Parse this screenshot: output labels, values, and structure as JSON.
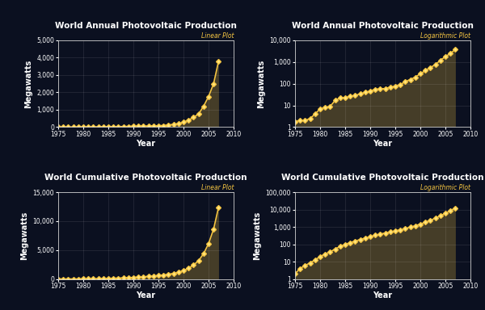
{
  "chart_data": [
    {
      "type": "line",
      "title": "World Annual Photovoltaic Production",
      "subtitle": "Linear Plot",
      "x_label": "Year",
      "y_label": "Megawatts",
      "x": [
        1975,
        1976,
        1977,
        1978,
        1979,
        1980,
        1981,
        1982,
        1983,
        1984,
        1985,
        1986,
        1987,
        1988,
        1989,
        1990,
        1991,
        1992,
        1993,
        1994,
        1995,
        1996,
        1997,
        1998,
        1999,
        2000,
        2001,
        2002,
        2003,
        2004,
        2005,
        2006,
        2007
      ],
      "values": [
        1.8,
        2,
        2,
        2.5,
        4,
        7,
        8,
        9,
        17,
        22,
        23,
        26,
        29,
        34,
        40,
        46,
        55,
        58,
        60,
        69,
        78,
        89,
        126,
        155,
        201,
        288,
        401,
        560,
        750,
        1200,
        1760,
        2500,
        3800
      ],
      "color": "#f5c542",
      "marker": "diamond",
      "line_style": "solid",
      "grid": true,
      "xlim": [
        1975,
        2010
      ],
      "xticks": [
        1975,
        1980,
        1985,
        1990,
        1995,
        2000,
        2005,
        2010
      ],
      "ylim": [
        0,
        5000
      ],
      "yticks": [
        0,
        {
          "value": 1000,
          "label": "1,000"
        },
        {
          "value": 2000,
          "label": "2,000"
        },
        {
          "value": 3000,
          "label": "3,000"
        },
        {
          "value": 4000,
          "label": "4,000"
        },
        {
          "value": 5000,
          "label": "5,000"
        }
      ]
    },
    {
      "type": "line",
      "title": "World Annual Photovoltaic Production",
      "subtitle": "Logarithmic Plot",
      "x_label": "Year",
      "y_label": "Megawatts",
      "log": "y",
      "x": [
        1975,
        1976,
        1977,
        1978,
        1979,
        1980,
        1981,
        1982,
        1983,
        1984,
        1985,
        1986,
        1987,
        1988,
        1989,
        1990,
        1991,
        1992,
        1993,
        1994,
        1995,
        1996,
        1997,
        1998,
        1999,
        2000,
        2001,
        2002,
        2003,
        2004,
        2005,
        2006,
        2007
      ],
      "values": [
        1.8,
        2,
        2,
        2.5,
        4,
        7,
        8,
        9,
        17,
        22,
        23,
        26,
        29,
        34,
        40,
        46,
        55,
        58,
        60,
        69,
        78,
        89,
        126,
        155,
        201,
        288,
        401,
        560,
        750,
        1200,
        1760,
        2500,
        3800
      ],
      "color": "#f5c542",
      "marker": "diamond",
      "line_style": "solid",
      "grid": true,
      "xlim": [
        1975,
        2010
      ],
      "xticks": [
        1975,
        1980,
        1985,
        1990,
        1995,
        2000,
        2005,
        2010
      ],
      "ylim": [
        1,
        10000
      ],
      "yticks": [
        1,
        10,
        100,
        {
          "value": 1000,
          "label": "1,000"
        },
        {
          "value": 10000,
          "label": "10,000"
        }
      ]
    },
    {
      "type": "line",
      "title": "World Cumulative Photovoltaic Production",
      "subtitle": "Linear Plot",
      "x_label": "Year",
      "y_label": "Megawatts",
      "x": [
        1975,
        1976,
        1977,
        1978,
        1979,
        1980,
        1981,
        1982,
        1983,
        1984,
        1985,
        1986,
        1987,
        1988,
        1989,
        1990,
        1991,
        1992,
        1993,
        1994,
        1995,
        1996,
        1997,
        1998,
        1999,
        2000,
        2001,
        2002,
        2003,
        2004,
        2005,
        2006,
        2007
      ],
      "values": [
        2,
        4,
        6,
        8.5,
        12.5,
        19.5,
        27.5,
        36.5,
        53,
        75,
        98,
        124,
        153,
        187,
        227,
        273,
        328,
        386,
        446,
        515,
        593,
        682,
        808,
        963,
        1164,
        1452,
        1853,
        2413,
        3163,
        4363,
        6123,
        8623,
        12423
      ],
      "color": "#f5c542",
      "marker": "diamond",
      "line_style": "solid",
      "grid": true,
      "xlim": [
        1975,
        2010
      ],
      "xticks": [
        1975,
        1980,
        1985,
        1990,
        1995,
        2000,
        2005,
        2010
      ],
      "ylim": [
        0,
        15000
      ],
      "yticks": [
        0,
        {
          "value": 5000,
          "label": "5,000"
        },
        {
          "value": 10000,
          "label": "10,000"
        },
        {
          "value": 15000,
          "label": "15,000"
        }
      ]
    },
    {
      "type": "line",
      "title": "World Cumulative Photovoltaic Production",
      "subtitle": "Logarithmic Plot",
      "x_label": "Year",
      "y_label": "Megawatts",
      "log": "y",
      "x": [
        1975,
        1976,
        1977,
        1978,
        1979,
        1980,
        1981,
        1982,
        1983,
        1984,
        1985,
        1986,
        1987,
        1988,
        1989,
        1990,
        1991,
        1992,
        1993,
        1994,
        1995,
        1996,
        1997,
        1998,
        1999,
        2000,
        2001,
        2002,
        2003,
        2004,
        2005,
        2006,
        2007
      ],
      "values": [
        2,
        4,
        6,
        8.5,
        12.5,
        19.5,
        27.5,
        36.5,
        53,
        75,
        98,
        124,
        153,
        187,
        227,
        273,
        328,
        386,
        446,
        515,
        593,
        682,
        808,
        963,
        1164,
        1452,
        1853,
        2413,
        3163,
        4363,
        6123,
        8623,
        12423
      ],
      "color": "#f5c542",
      "marker": "diamond",
      "line_style": "solid",
      "grid": true,
      "xlim": [
        1975,
        2010
      ],
      "xticks": [
        1975,
        1980,
        1985,
        1990,
        1995,
        2000,
        2005,
        2010
      ],
      "ylim": [
        1,
        100000
      ],
      "yticks": [
        1,
        10,
        100,
        {
          "value": 1000,
          "label": "1,000"
        },
        {
          "value": 10000,
          "label": "10,000"
        },
        {
          "value": 100000,
          "label": "100,000"
        }
      ]
    }
  ]
}
